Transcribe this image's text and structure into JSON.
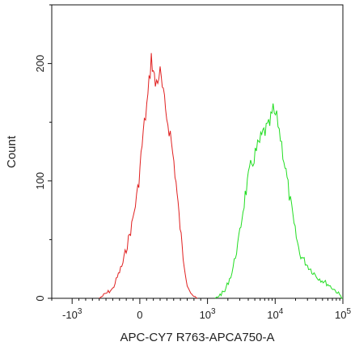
{
  "chart_data": {
    "type": "area",
    "title": "",
    "xlabel": "APC-CY7 R763-APCA750-A",
    "ylabel": "Count",
    "x_scale": "biexponential",
    "xlim": [
      -2000,
      100000
    ],
    "ylim": [
      0,
      250
    ],
    "grid": false,
    "x_ticks": [
      {
        "value": -1000,
        "base": "-10",
        "exp": "3"
      },
      {
        "value": 0,
        "base": "0",
        "exp": ""
      },
      {
        "value": 1000,
        "base": "10",
        "exp": "3"
      },
      {
        "value": 10000,
        "base": "10",
        "exp": "4"
      },
      {
        "value": 100000,
        "base": "10",
        "exp": "5"
      }
    ],
    "y_ticks": [
      {
        "value": 0,
        "label": "0"
      },
      {
        "value": 100,
        "label": "100"
      },
      {
        "value": 200,
        "label": "200"
      }
    ],
    "series": [
      {
        "color": "#e02020",
        "points": [
          [
            -600,
            0
          ],
          [
            -400,
            8
          ],
          [
            -250,
            30
          ],
          [
            -120,
            62
          ],
          [
            -30,
            92
          ],
          [
            50,
            140
          ],
          [
            120,
            172
          ],
          [
            170,
            205
          ],
          [
            230,
            182
          ],
          [
            300,
            192
          ],
          [
            380,
            160
          ],
          [
            450,
            140
          ],
          [
            520,
            108
          ],
          [
            580,
            70
          ],
          [
            640,
            35
          ],
          [
            700,
            12
          ],
          [
            770,
            2
          ],
          [
            850,
            0
          ]
        ]
      },
      {
        "color": "#22dd22",
        "points": [
          [
            1300,
            0
          ],
          [
            1800,
            6
          ],
          [
            2300,
            22
          ],
          [
            2900,
            50
          ],
          [
            3600,
            88
          ],
          [
            4500,
            115
          ],
          [
            5500,
            128
          ],
          [
            6800,
            142
          ],
          [
            8000,
            145
          ],
          [
            9300,
            160
          ],
          [
            11000,
            150
          ],
          [
            13000,
            125
          ],
          [
            15500,
            95
          ],
          [
            19000,
            62
          ],
          [
            23000,
            38
          ],
          [
            30000,
            28
          ],
          [
            42000,
            18
          ],
          [
            60000,
            12
          ],
          [
            80000,
            6
          ],
          [
            100000,
            0
          ]
        ]
      }
    ]
  }
}
